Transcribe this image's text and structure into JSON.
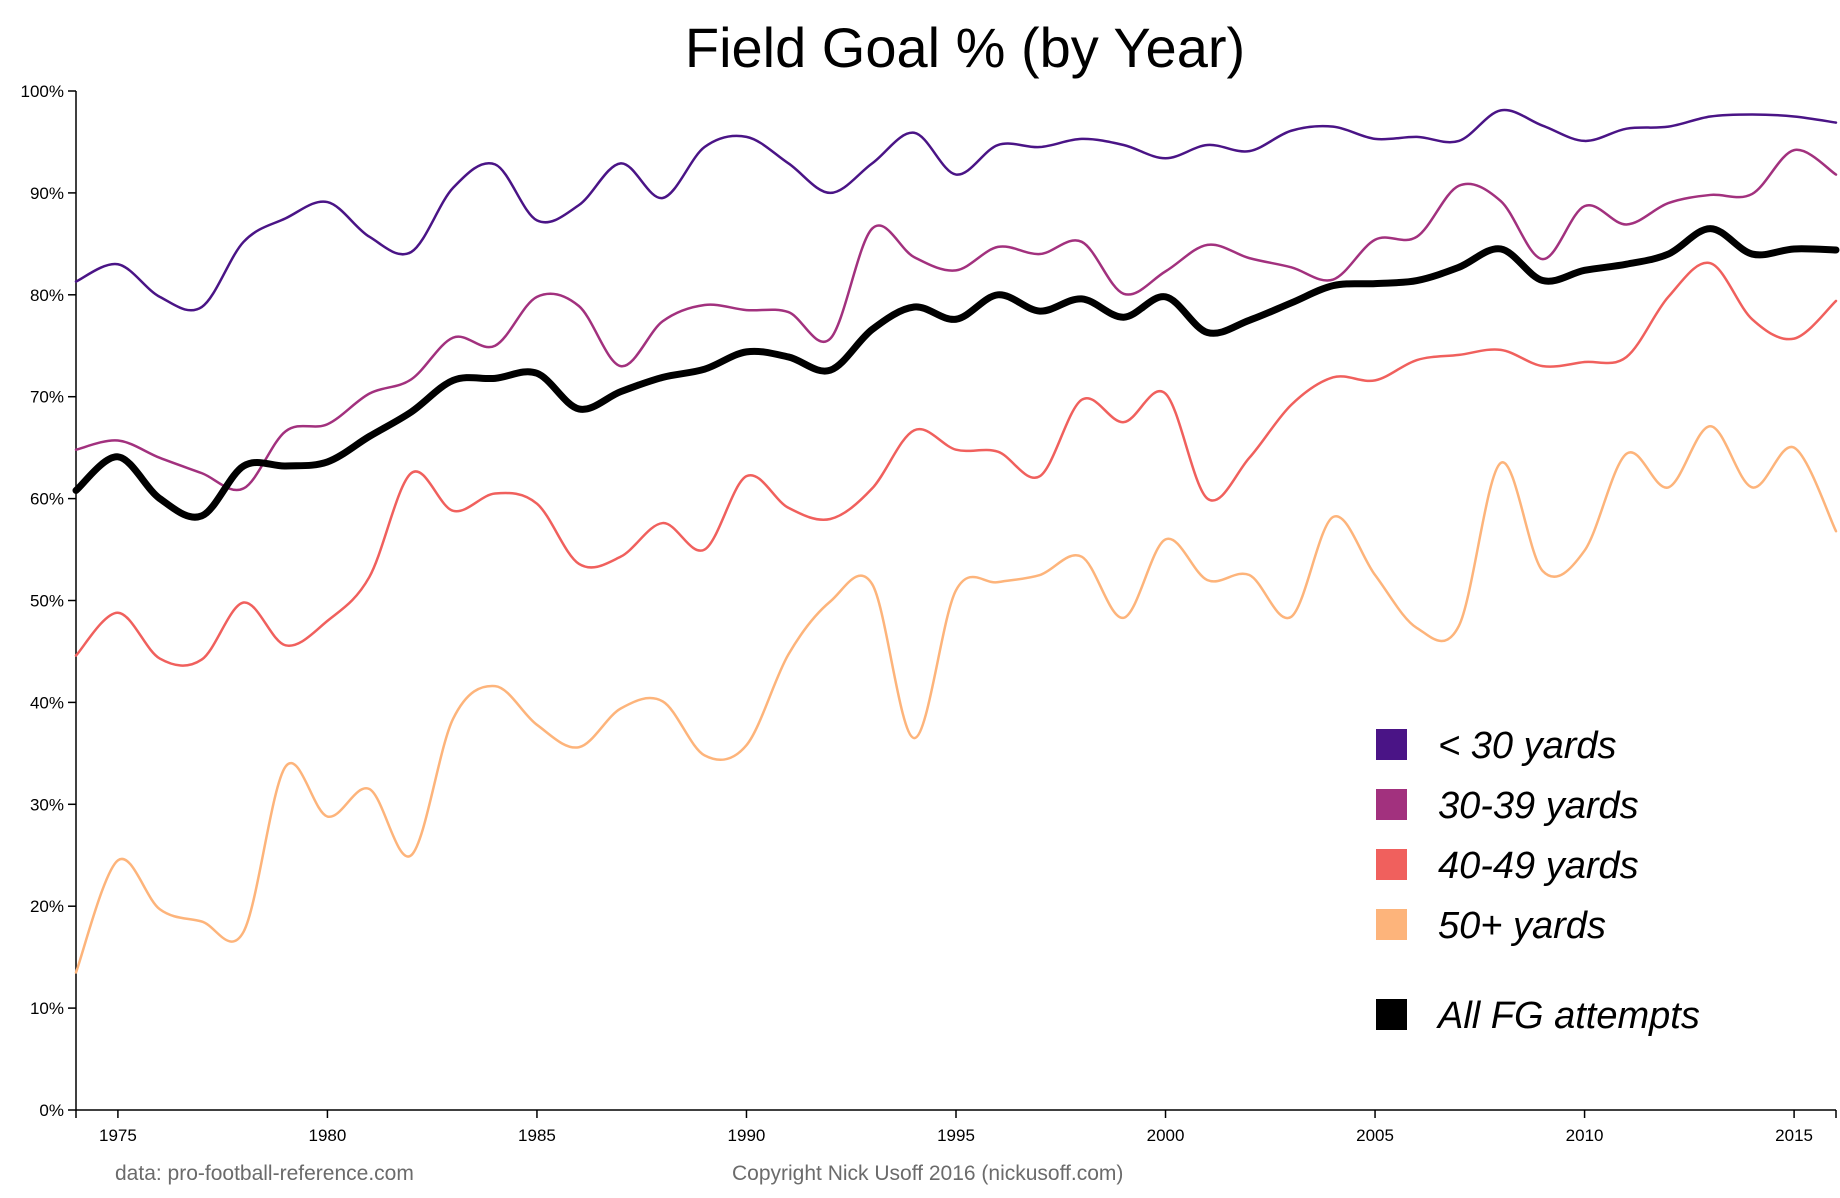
{
  "chart_data": {
    "type": "line",
    "title": "Field Goal % (by Year)",
    "xlabel": "",
    "ylabel": "",
    "xlim": [
      1974,
      2016
    ],
    "ylim": [
      0,
      100
    ],
    "x_ticks": [
      1975,
      1980,
      1985,
      1990,
      1995,
      2000,
      2005,
      2010,
      2015
    ],
    "y_ticks": [
      0,
      10,
      20,
      30,
      40,
      50,
      60,
      70,
      80,
      90,
      100
    ],
    "y_tick_labels": [
      "0%",
      "10%",
      "20%",
      "30%",
      "40%",
      "50%",
      "60%",
      "70%",
      "80%",
      "90%",
      "100%"
    ],
    "grid": false,
    "legend_position": "bottom-right",
    "x": [
      1974,
      1975,
      1976,
      1977,
      1978,
      1979,
      1980,
      1981,
      1982,
      1983,
      1984,
      1985,
      1986,
      1987,
      1988,
      1989,
      1990,
      1991,
      1992,
      1993,
      1994,
      1995,
      1996,
      1997,
      1998,
      1999,
      2000,
      2001,
      2002,
      2003,
      2004,
      2005,
      2006,
      2007,
      2008,
      2009,
      2010,
      2011,
      2012,
      2013,
      2014,
      2015,
      2016
    ],
    "series": [
      {
        "name": "< 30 yards",
        "color": "#4a1486",
        "values": [
          81.3,
          83.0,
          79.8,
          78.8,
          85.2,
          87.5,
          89.1,
          85.7,
          84.2,
          90.5,
          92.8,
          87.3,
          88.8,
          92.9,
          89.5,
          94.5,
          95.5,
          92.9,
          90.0,
          92.9,
          95.9,
          91.8,
          94.7,
          94.5,
          95.3,
          94.7,
          93.4,
          94.7,
          94.1,
          96.1,
          96.5,
          95.3,
          95.5,
          95.1,
          98.1,
          96.6,
          95.1,
          96.3,
          96.5,
          97.5,
          97.7,
          97.5,
          96.9
        ]
      },
      {
        "name": "30-39 yards",
        "color": "#a2317e",
        "values": [
          64.8,
          65.7,
          64.0,
          62.5,
          61.0,
          66.6,
          67.3,
          70.3,
          71.7,
          75.8,
          75.0,
          79.8,
          78.9,
          73.0,
          77.4,
          79.0,
          78.5,
          78.3,
          75.7,
          86.5,
          83.7,
          82.4,
          84.7,
          84.0,
          85.2,
          80.1,
          82.3,
          84.9,
          83.6,
          82.7,
          81.5,
          85.4,
          85.7,
          90.7,
          89.2,
          83.5,
          88.7,
          86.9,
          89.0,
          89.8,
          89.9,
          94.2,
          91.8
        ]
      },
      {
        "name": "40-49 yards",
        "color": "#f0605d",
        "values": [
          44.6,
          48.8,
          44.3,
          44.2,
          49.8,
          45.6,
          48.0,
          52.3,
          62.5,
          58.8,
          60.5,
          59.5,
          53.6,
          54.3,
          57.6,
          55.0,
          62.2,
          59.1,
          58.0,
          61.0,
          66.7,
          64.8,
          64.6,
          62.2,
          69.7,
          67.5,
          70.3,
          60.0,
          64.0,
          69.2,
          71.9,
          71.6,
          73.6,
          74.1,
          74.6,
          73.0,
          73.4,
          73.9,
          79.8,
          83.1,
          77.6,
          75.7,
          79.4
        ]
      },
      {
        "name": "50+ yards",
        "color": "#fdb47b",
        "values": [
          13.5,
          24.5,
          19.7,
          18.5,
          17.5,
          33.7,
          28.8,
          31.5,
          25.0,
          38.4,
          41.6,
          37.8,
          35.6,
          39.4,
          40.1,
          34.8,
          35.8,
          44.7,
          49.9,
          51.6,
          36.5,
          51.0,
          51.8,
          52.5,
          54.3,
          48.3,
          56.0,
          52.0,
          52.5,
          48.4,
          58.2,
          52.5,
          47.3,
          47.5,
          63.5,
          52.9,
          54.9,
          64.4,
          61.1,
          67.1,
          61.1,
          65.0,
          56.8
        ]
      },
      {
        "name": "All FG attempts",
        "color": "#000000",
        "values": [
          60.8,
          64.1,
          60.0,
          58.3,
          63.2,
          63.2,
          63.6,
          66.1,
          68.5,
          71.6,
          71.8,
          72.3,
          68.8,
          70.5,
          71.9,
          72.7,
          74.4,
          73.9,
          72.6,
          76.6,
          78.8,
          77.6,
          80.0,
          78.4,
          79.6,
          77.8,
          79.8,
          76.3,
          77.5,
          79.2,
          80.9,
          81.1,
          81.4,
          82.7,
          84.5,
          81.4,
          82.4,
          83.0,
          84.0,
          86.5,
          84.0,
          84.5,
          84.4
        ]
      }
    ]
  },
  "footer": {
    "source": "data: pro-football-reference.com",
    "copyright": "Copyright Nick Usoff 2016 (nickusoff.com)"
  }
}
